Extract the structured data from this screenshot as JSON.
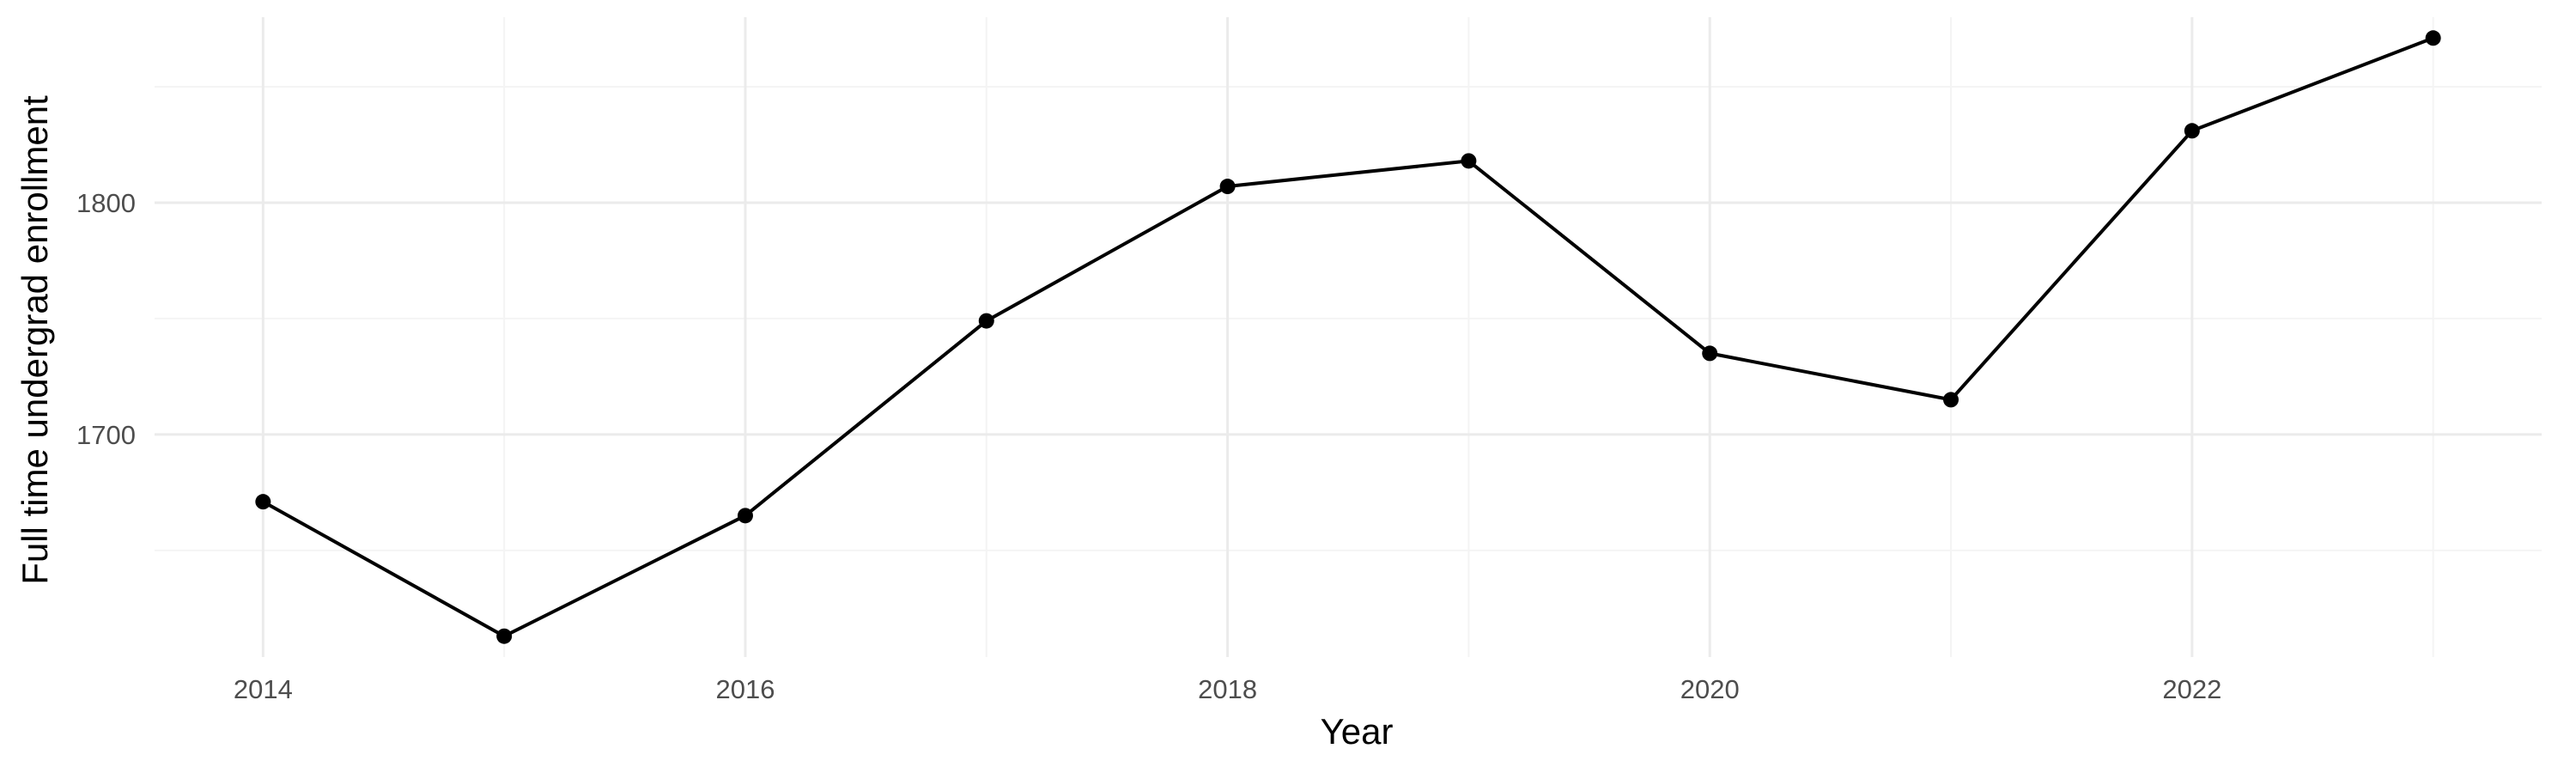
{
  "chart_data": {
    "type": "line",
    "title": "",
    "xlabel": "Year",
    "ylabel": "Full time undergrad enrollment",
    "x": [
      2014,
      2015,
      2016,
      2017,
      2018,
      2019,
      2020,
      2021,
      2022,
      2023
    ],
    "series": [
      {
        "values": [
          1671,
          1613,
          1665,
          1749,
          1807,
          1818,
          1735,
          1715,
          1831,
          1871
        ]
      }
    ],
    "xlim": [
      2013.55,
      2023.45
    ],
    "ylim": [
      1604,
      1880
    ],
    "x_major_ticks": [
      2014,
      2016,
      2018,
      2020,
      2022
    ],
    "x_tick_labels": [
      "2014",
      "2016",
      "2018",
      "2020",
      "2022"
    ],
    "x_minor_ticks": [
      2015,
      2017,
      2019,
      2021,
      2023
    ],
    "y_major_ticks": [
      1700,
      1800
    ],
    "y_tick_labels": [
      "1700",
      "1800"
    ],
    "y_minor_ticks": [
      1650,
      1750,
      1850
    ],
    "grid": true,
    "legend": "none",
    "line_color": "#000000",
    "grid_color": "#ebebeb"
  }
}
